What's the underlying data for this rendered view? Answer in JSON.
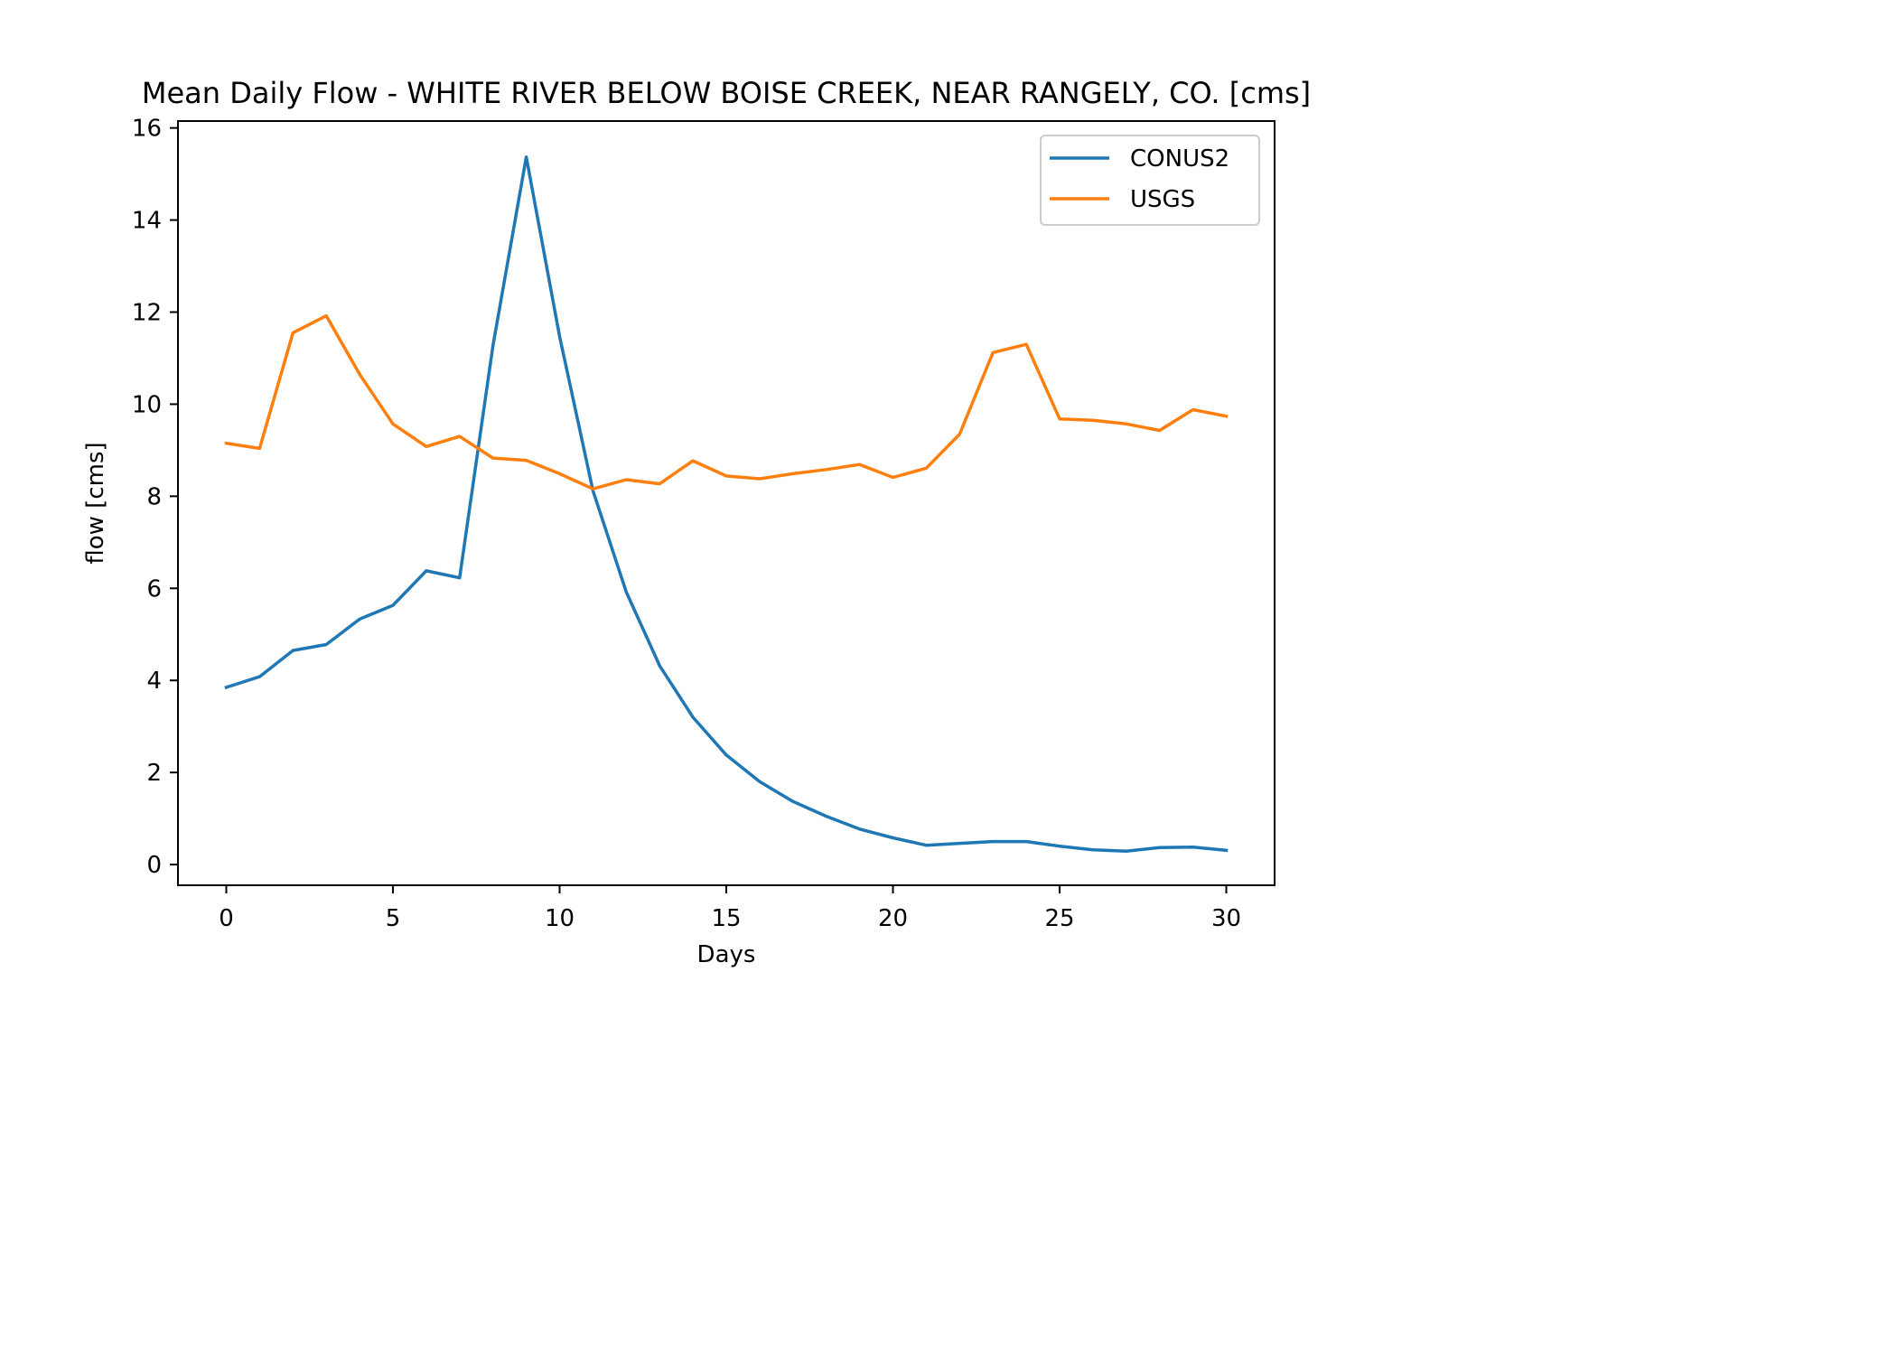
{
  "chart_data": {
    "type": "line",
    "title": "Mean Daily Flow - WHITE RIVER BELOW BOISE CREEK, NEAR RANGELY, CO. [cms]",
    "xlabel": "Days",
    "ylabel": "flow [cms]",
    "xlim": [
      -1.45,
      31.45
    ],
    "ylim": [
      -0.45,
      16.15
    ],
    "xticks": [
      0,
      5,
      10,
      15,
      20,
      25,
      30
    ],
    "yticks": [
      0,
      2,
      4,
      6,
      8,
      10,
      12,
      14,
      16
    ],
    "grid": false,
    "legend_position": "top-right",
    "x": [
      0,
      1,
      2,
      3,
      4,
      5,
      6,
      7,
      8,
      9,
      10,
      11,
      12,
      13,
      14,
      15,
      16,
      17,
      18,
      19,
      20,
      21,
      22,
      23,
      24,
      25,
      26,
      27,
      28,
      29,
      30
    ],
    "series": [
      {
        "name": "CONUS2",
        "color": "#1f77b4",
        "values": [
          3.85,
          4.08,
          4.65,
          4.78,
          5.33,
          5.63,
          6.38,
          6.23,
          11.27,
          15.37,
          11.47,
          8.12,
          5.92,
          4.32,
          3.2,
          2.38,
          1.8,
          1.37,
          1.05,
          0.77,
          0.58,
          0.42,
          0.46,
          0.5,
          0.5,
          0.4,
          0.32,
          0.29,
          0.37,
          0.38,
          0.31
        ]
      },
      {
        "name": "USGS",
        "color": "#ff7f0e",
        "values": [
          9.15,
          9.04,
          11.55,
          11.92,
          10.65,
          9.57,
          9.08,
          9.3,
          8.83,
          8.78,
          8.49,
          8.16,
          8.36,
          8.27,
          8.77,
          8.44,
          8.38,
          8.49,
          8.58,
          8.69,
          8.41,
          8.61,
          9.35,
          11.12,
          11.3,
          9.68,
          9.65,
          9.57,
          9.43,
          9.88,
          9.74
        ]
      }
    ]
  }
}
